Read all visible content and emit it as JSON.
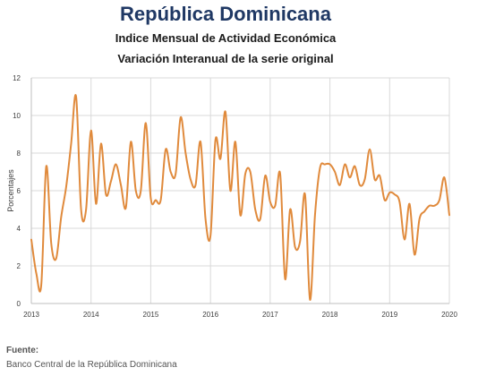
{
  "header": {
    "title": "República Dominicana",
    "subtitle1": "Indice Mensual de  Actividad Económica",
    "subtitle2": "Variación Interanual de la serie original"
  },
  "source": {
    "label": "Fuente:",
    "text": "Banco Central de la República Dominicana"
  },
  "colors": {
    "line": "#e08a3c",
    "grid": "#d9d9d9",
    "axis": "#bfbfbf"
  },
  "chart_data": {
    "type": "line",
    "title": "Variación Interanual de la serie original",
    "xlabel": "",
    "ylabel": "Porcentajes",
    "xlim": [
      2013,
      2020
    ],
    "ylim": [
      0,
      12
    ],
    "yticks": [
      0,
      2,
      4,
      6,
      8,
      10,
      12
    ],
    "xticks": [
      "2013",
      "2014",
      "2015",
      "2016",
      "2017",
      "2018",
      "2019",
      "2020"
    ],
    "grid": true,
    "series": [
      {
        "values": [
          3.4,
          1.6,
          1.0,
          7.3,
          3.2,
          2.4,
          4.6,
          6.2,
          8.5,
          11.0,
          5.0,
          5.0,
          9.2,
          5.3,
          8.5,
          5.8,
          6.5,
          7.4,
          6.3,
          5.1,
          8.6,
          6.0,
          6.0,
          9.6,
          5.6,
          5.5,
          5.5,
          8.2,
          7.0,
          6.9,
          9.9,
          8.0,
          6.6,
          6.3,
          8.6,
          4.5,
          3.6,
          8.7,
          7.7,
          10.2,
          6.0,
          8.6,
          4.7,
          6.9,
          7.0,
          5.0,
          4.5,
          6.8,
          5.4,
          5.2,
          6.9,
          1.3,
          5.0,
          3.0,
          3.3,
          5.8,
          0.2,
          4.7,
          7.2,
          7.4,
          7.4,
          7.0,
          6.3,
          7.4,
          6.7,
          7.3,
          6.3,
          6.6,
          8.2,
          6.6,
          6.8,
          5.5,
          5.9,
          5.8,
          5.4,
          3.4,
          5.3,
          2.6,
          4.5,
          4.9,
          5.2,
          5.2,
          5.5,
          6.7,
          4.7
        ]
      }
    ]
  }
}
